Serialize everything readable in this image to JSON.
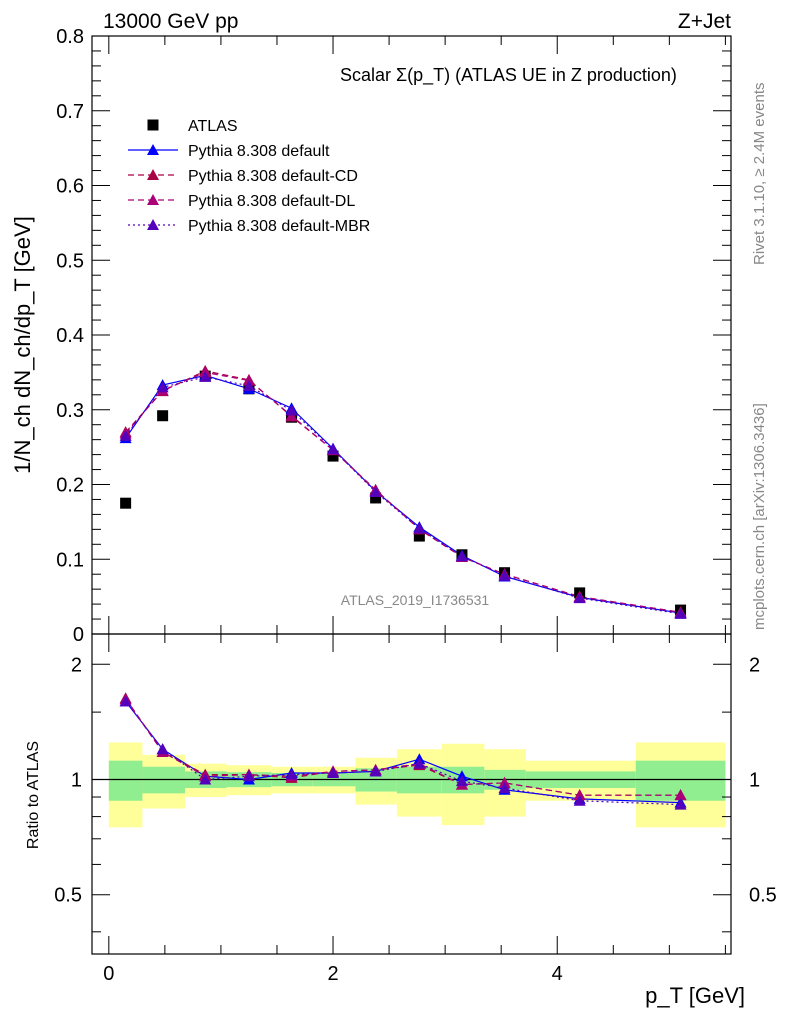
{
  "header": {
    "left": "13000 GeV pp",
    "right": "Z+Jet"
  },
  "side_labels": {
    "rivet": "Rivet 3.1.10, ≥ 2.4M events",
    "mcplots": "mcplots.cern.ch [arXiv:1306.3436]"
  },
  "watermark": "ATLAS_2019_I1736531",
  "chart_data": [
    {
      "type": "scatter",
      "title": "Scalar Σ(p_T) (ATLAS UE in Z production)",
      "ylabel": "1/N_ch dN_ch/dp_T [GeV]",
      "xlabel": "p_T [GeV]",
      "xlim": [
        -0.15,
        5.55
      ],
      "ylim": [
        0,
        0.8
      ],
      "x_ticks": [
        0,
        2,
        4
      ],
      "y_ticks": [
        0,
        0.1,
        0.2,
        0.3,
        0.4,
        0.5,
        0.6,
        0.7,
        0.8
      ],
      "y_tick_labels": [
        "0",
        "0.1",
        "0.2",
        "0.3",
        "0.4",
        "0.5",
        "0.6",
        "0.7",
        "0.8"
      ],
      "legend_position": "top-left",
      "x": [
        0.15,
        0.48,
        0.86,
        1.25,
        1.63,
        2.0,
        2.38,
        2.77,
        3.15,
        3.53,
        4.2,
        5.1
      ],
      "series": [
        {
          "name": "ATLAS",
          "style": "data",
          "color": "#000000",
          "values": [
            0.175,
            0.292,
            0.345,
            0.328,
            0.29,
            0.238,
            0.182,
            0.131,
            0.106,
            0.082,
            0.055,
            0.032
          ]
        },
        {
          "name": "Pythia 8.308 default",
          "style": "solid",
          "color": "#0000ff",
          "values": [
            0.262,
            0.333,
            0.346,
            0.328,
            0.302,
            0.248,
            0.191,
            0.143,
            0.105,
            0.077,
            0.049,
            0.028
          ]
        },
        {
          "name": "Pythia 8.308 default-CD",
          "style": "dashed",
          "color": "#aa0044",
          "values": [
            0.27,
            0.325,
            0.352,
            0.34,
            0.291,
            0.246,
            0.193,
            0.14,
            0.103,
            0.08,
            0.05,
            0.029
          ]
        },
        {
          "name": "Pythia 8.308 default-DL",
          "style": "dashed",
          "color": "#aa0077",
          "values": [
            0.268,
            0.326,
            0.35,
            0.339,
            0.292,
            0.246,
            0.192,
            0.141,
            0.103,
            0.08,
            0.05,
            0.029
          ]
        },
        {
          "name": "Pythia 8.308 default-MBR",
          "style": "dotted",
          "color": "#5500bb",
          "values": [
            0.265,
            0.33,
            0.344,
            0.332,
            0.299,
            0.247,
            0.19,
            0.141,
            0.104,
            0.078,
            0.048,
            0.027
          ]
        }
      ]
    },
    {
      "type": "scatter",
      "ylabel": "Ratio to ATLAS",
      "xlabel": "p_T [GeV]",
      "xlim": [
        -0.15,
        5.55
      ],
      "ylim": [
        0.35,
        2.4
      ],
      "scale": "log",
      "y_ticks": [
        0.5,
        1,
        2
      ],
      "y_tick_labels": [
        "0.5",
        "1",
        "2"
      ],
      "x": [
        0.15,
        0.48,
        0.86,
        1.25,
        1.63,
        2.0,
        2.38,
        2.77,
        3.15,
        3.53,
        4.2,
        5.1
      ],
      "bins": [
        [
          0.0,
          0.3
        ],
        [
          0.3,
          0.68
        ],
        [
          0.68,
          1.05
        ],
        [
          1.05,
          1.45
        ],
        [
          1.45,
          1.82
        ],
        [
          1.82,
          2.2
        ],
        [
          2.2,
          2.57
        ],
        [
          2.57,
          2.97
        ],
        [
          2.97,
          3.35
        ],
        [
          3.35,
          3.72
        ],
        [
          3.72,
          4.7
        ],
        [
          4.7,
          5.5
        ]
      ],
      "band_stat": [
        0.12,
        0.08,
        0.05,
        0.045,
        0.04,
        0.04,
        0.07,
        0.08,
        0.08,
        0.06,
        0.05,
        0.12
      ],
      "band_total": [
        0.25,
        0.16,
        0.1,
        0.09,
        0.08,
        0.08,
        0.14,
        0.2,
        0.24,
        0.2,
        0.12,
        0.25
      ],
      "series": [
        {
          "name": "Pythia 8.308 default",
          "style": "solid",
          "color": "#0000ff",
          "values": [
            1.6,
            1.2,
            1.02,
            1.0,
            1.04,
            1.04,
            1.05,
            1.13,
            1.02,
            0.94,
            0.89,
            0.87
          ]
        },
        {
          "name": "Pythia 8.308 default-CD",
          "style": "dashed",
          "color": "#aa0044",
          "values": [
            1.63,
            1.18,
            1.03,
            1.03,
            1.01,
            1.05,
            1.06,
            1.09,
            0.97,
            0.98,
            0.91,
            0.91
          ]
        },
        {
          "name": "Pythia 8.308 default-DL",
          "style": "dashed",
          "color": "#aa0077",
          "values": [
            1.62,
            1.18,
            1.02,
            1.03,
            1.02,
            1.05,
            1.06,
            1.1,
            0.97,
            0.98,
            0.91,
            0.91
          ]
        },
        {
          "name": "Pythia 8.308 default-MBR",
          "style": "dotted",
          "color": "#5500bb",
          "values": [
            1.6,
            1.2,
            1.0,
            1.02,
            1.03,
            1.04,
            1.05,
            1.1,
            0.99,
            0.95,
            0.88,
            0.86
          ]
        }
      ]
    }
  ],
  "colors": {
    "band_stat": "#90ee90",
    "band_total": "#ffff99"
  }
}
